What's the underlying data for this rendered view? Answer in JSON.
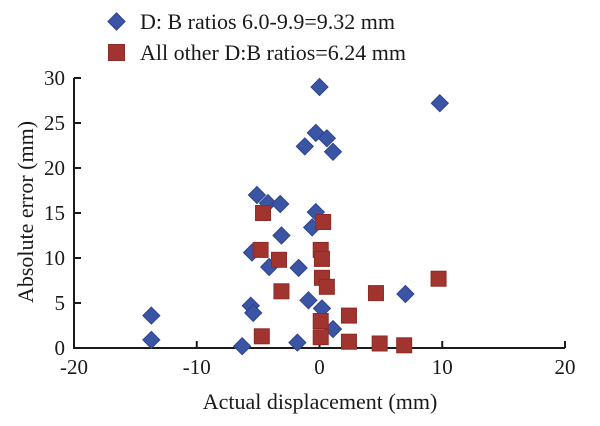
{
  "chart_data": {
    "type": "scatter",
    "title": "",
    "xlabel": "Actual displacement (mm)",
    "ylabel": "Absolute error (mm)",
    "xlim": [
      -20,
      20
    ],
    "ylim": [
      0,
      30
    ],
    "xticks": [
      -20,
      -10,
      0,
      10,
      20
    ],
    "yticks": [
      0,
      5,
      10,
      15,
      20,
      25,
      30
    ],
    "grid": false,
    "legend_position": "top",
    "axis_color": "#1a1a1a",
    "series": [
      {
        "name": "D: B ratios 6.0-9.9=9.32 mm",
        "marker": "diamond",
        "color": "#3B55A5",
        "edge_color": "#2e4390",
        "points": [
          [
            0.0,
            29.0
          ],
          [
            9.8,
            27.2
          ],
          [
            -0.3,
            23.9
          ],
          [
            0.6,
            23.3
          ],
          [
            -1.2,
            22.4
          ],
          [
            1.1,
            21.8
          ],
          [
            -5.1,
            17.0
          ],
          [
            -4.2,
            16.1
          ],
          [
            -3.2,
            16.0
          ],
          [
            -0.3,
            15.1
          ],
          [
            -0.6,
            13.4
          ],
          [
            -3.1,
            12.5
          ],
          [
            -5.5,
            10.6
          ],
          [
            -4.1,
            9.0
          ],
          [
            -1.7,
            8.9
          ],
          [
            -0.9,
            5.3
          ],
          [
            0.2,
            4.4
          ],
          [
            -5.6,
            4.7
          ],
          [
            -5.4,
            3.9
          ],
          [
            7.0,
            6.0
          ],
          [
            1.1,
            2.1
          ],
          [
            -13.7,
            3.6
          ],
          [
            -13.7,
            0.9
          ],
          [
            -6.3,
            0.2
          ],
          [
            -1.8,
            0.6
          ]
        ]
      },
      {
        "name": "All other D:B ratios=6.24 mm",
        "marker": "square",
        "color": "#A2342F",
        "edge_color": "#8c2b27",
        "points": [
          [
            -4.6,
            15.0
          ],
          [
            0.3,
            14.0
          ],
          [
            -4.8,
            10.9
          ],
          [
            0.1,
            10.9
          ],
          [
            0.2,
            9.9
          ],
          [
            -3.3,
            9.8
          ],
          [
            0.2,
            7.8
          ],
          [
            0.6,
            6.8
          ],
          [
            -3.1,
            6.3
          ],
          [
            4.6,
            6.1
          ],
          [
            9.7,
            7.7
          ],
          [
            2.4,
            3.6
          ],
          [
            0.1,
            3.0
          ],
          [
            0.1,
            1.2
          ],
          [
            -4.7,
            1.3
          ],
          [
            2.4,
            0.7
          ],
          [
            4.9,
            0.5
          ],
          [
            6.9,
            0.3
          ]
        ]
      }
    ]
  }
}
